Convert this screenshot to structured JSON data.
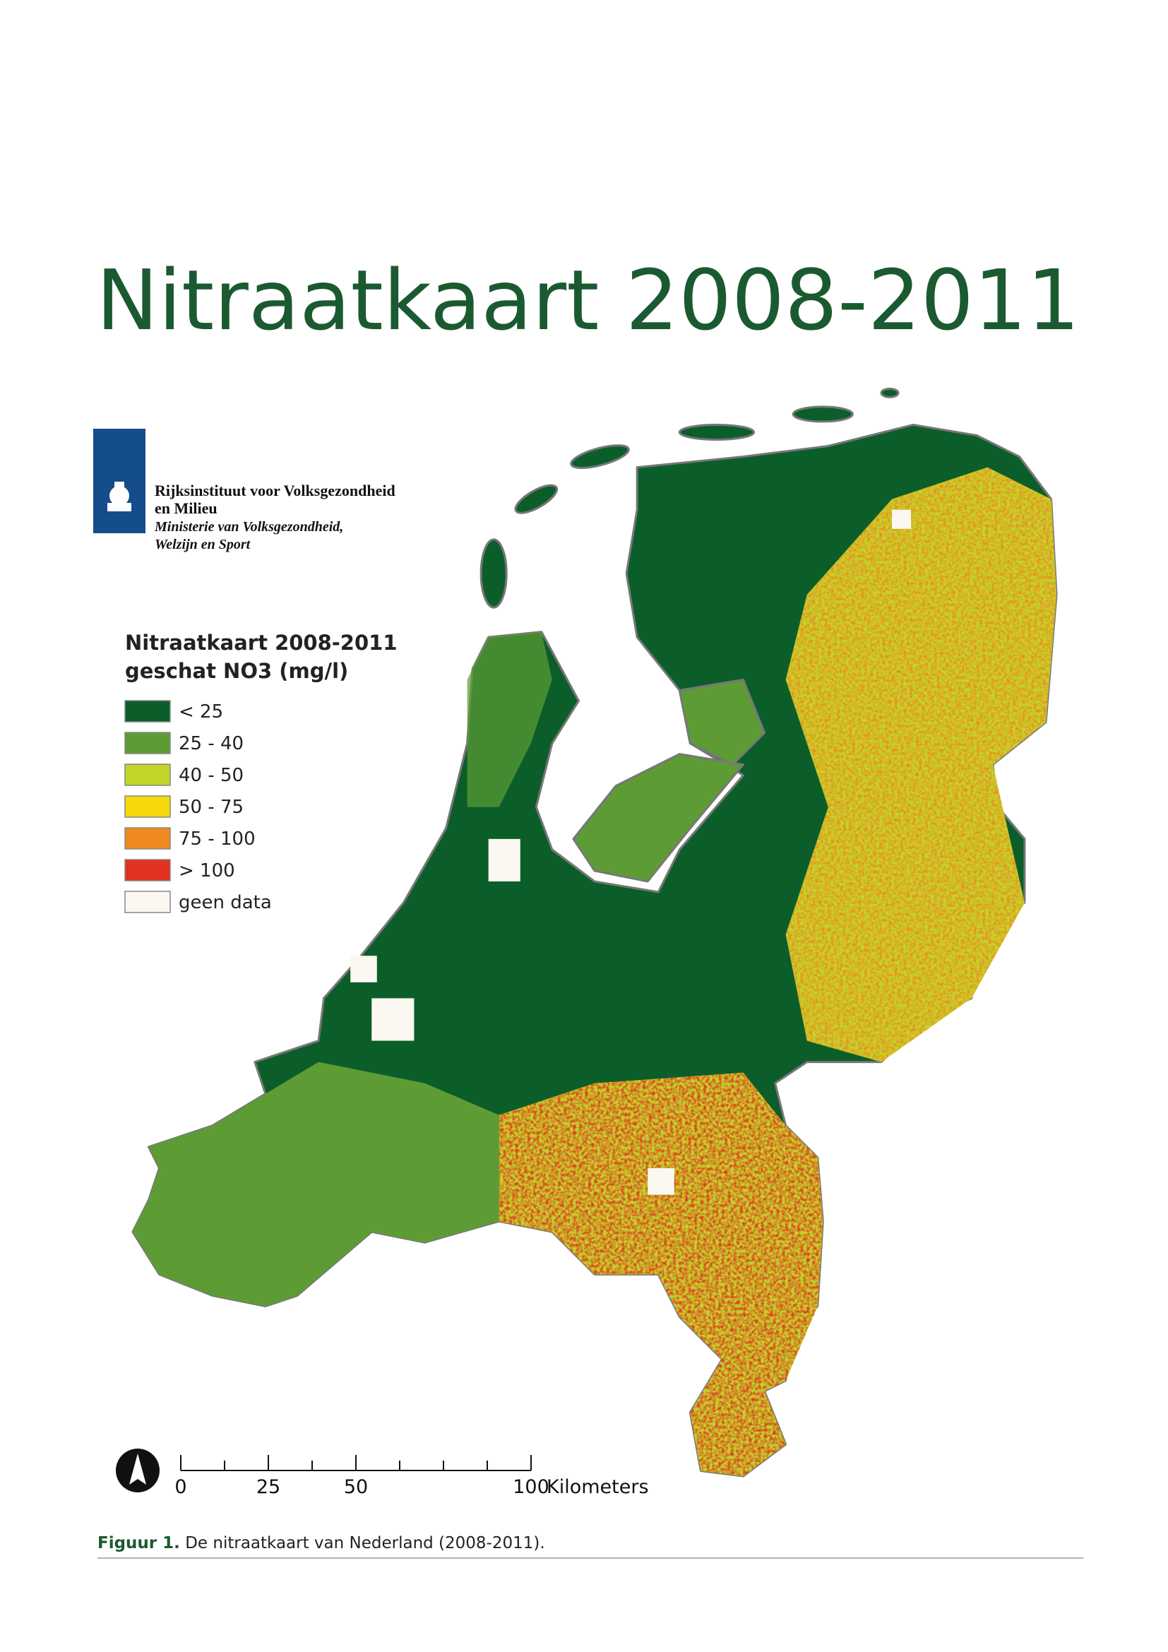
{
  "title": "Nitraatkaart 2008-2011",
  "logo": {
    "lines": [
      "Rijksinstituut voor Volksgezondheid",
      "en Milieu",
      "Ministerie van Volksgezondheid,",
      "Welzijn en Sport"
    ]
  },
  "legend": {
    "title": "Nitraatkaart 2008-2011",
    "subtitle": "geschat NO3 (mg/l)",
    "items": [
      {
        "label": "< 25",
        "color": "#0b5e2a"
      },
      {
        "label": "25 - 40",
        "color": "#5d9c35"
      },
      {
        "label": "40 - 50",
        "color": "#c2d42a"
      },
      {
        "label": "50 - 75",
        "color": "#f6d80a"
      },
      {
        "label": "75 - 100",
        "color": "#ee8a1f"
      },
      {
        "label": "> 100",
        "color": "#e2321f"
      },
      {
        "label": "geen data",
        "color": "#fbf8f1"
      }
    ]
  },
  "scale_bar": {
    "ticks": [
      0,
      25,
      50,
      100
    ],
    "minor_ticks": [
      12.5,
      37.5,
      62.5,
      75,
      87.5
    ],
    "unit": "Kilometers"
  },
  "caption": {
    "label": "Figuur 1.",
    "text": "De nitraatkaart van Nederland (2008-2011)."
  }
}
